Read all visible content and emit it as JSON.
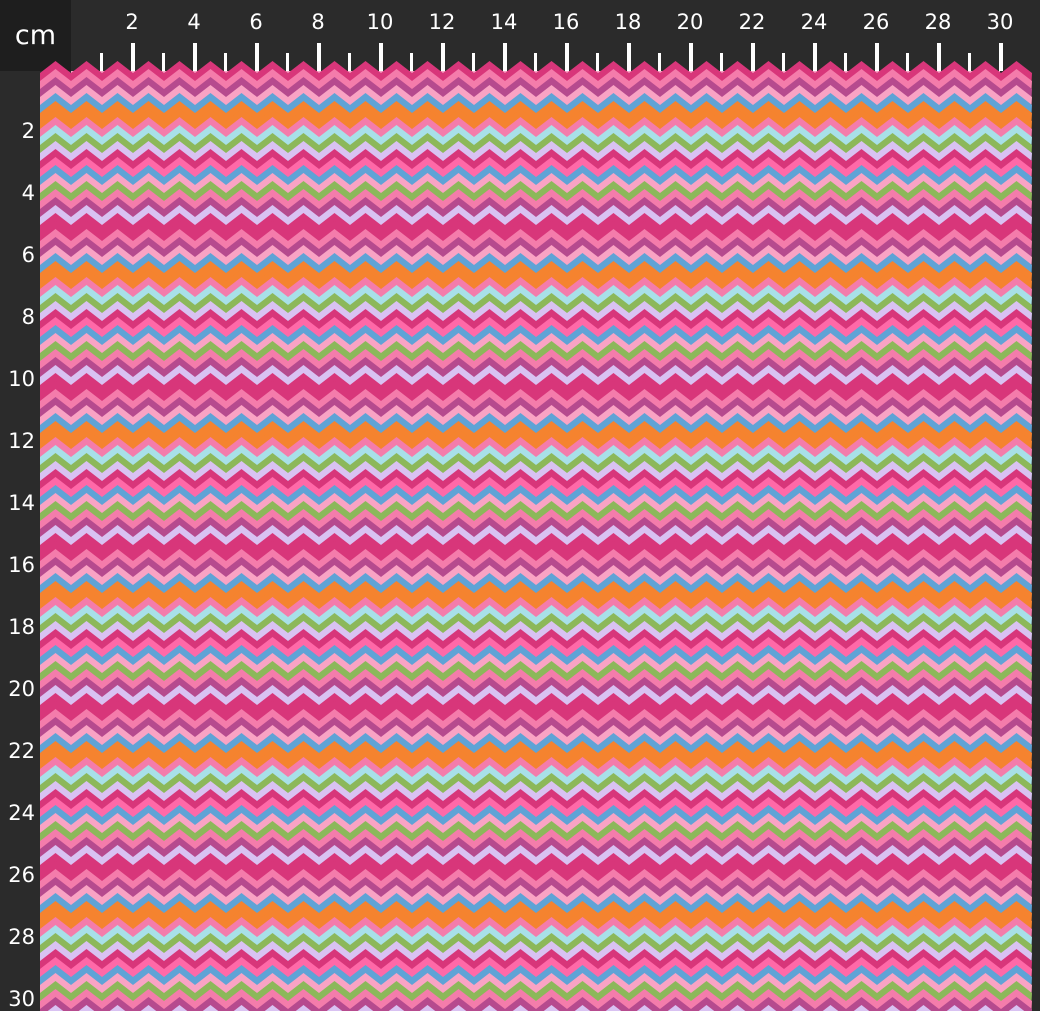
{
  "ruler": {
    "unit": "cm",
    "top_labels": [
      "2",
      "4",
      "6",
      "8",
      "10",
      "12",
      "14",
      "16",
      "18",
      "20",
      "22",
      "24",
      "26",
      "28",
      "30"
    ],
    "left_labels": [
      "2",
      "4",
      "6",
      "8",
      "10",
      "12",
      "14",
      "16",
      "18",
      "20",
      "22",
      "24",
      "26",
      "28",
      "30"
    ]
  },
  "fabric": {
    "pattern": "chevron zigzag stripes",
    "palette": [
      "#d8367a",
      "#f47cab",
      "#f9a3c4",
      "#f5832f",
      "#8cb85a",
      "#5fa3d6",
      "#d9c2f2",
      "#b64a8e",
      "#ff69a8",
      "#a8e0e8"
    ]
  }
}
